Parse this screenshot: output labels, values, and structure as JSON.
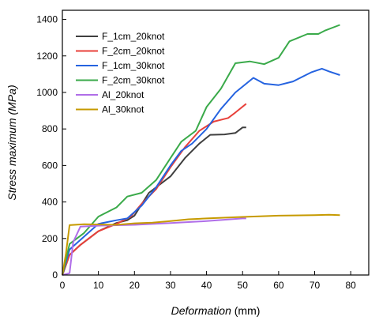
{
  "chart_data": {
    "type": "line",
    "xlabel_italic": "Deformation",
    "xlabel_unit": " (mm)",
    "ylabel_italic": "Stress maximum ",
    "ylabel_unit": "(MPa)",
    "xlim": [
      0,
      85
    ],
    "ylim": [
      0,
      1450
    ],
    "xticks": [
      0,
      10,
      20,
      30,
      40,
      50,
      60,
      70,
      80
    ],
    "yticks": [
      0,
      200,
      400,
      600,
      800,
      1000,
      1200,
      1400
    ],
    "grid": false,
    "legend_position": "top-left",
    "series": [
      {
        "name": "F_1cm_20knot",
        "color": "#3f3f3f",
        "points": [
          [
            0,
            0
          ],
          [
            2,
            110
          ],
          [
            5,
            165
          ],
          [
            10,
            240
          ],
          [
            15,
            285
          ],
          [
            18,
            300
          ],
          [
            20,
            325
          ],
          [
            24,
            450
          ],
          [
            30,
            540
          ],
          [
            34,
            640
          ],
          [
            38,
            720
          ],
          [
            41,
            768
          ],
          [
            45,
            770
          ],
          [
            48,
            778
          ],
          [
            50,
            808
          ],
          [
            51,
            808
          ]
        ]
      },
      {
        "name": "F_2cm_20knot",
        "color": "#e8413b",
        "points": [
          [
            0,
            0
          ],
          [
            2,
            110
          ],
          [
            5,
            165
          ],
          [
            10,
            240
          ],
          [
            15,
            280
          ],
          [
            19,
            320
          ],
          [
            22,
            390
          ],
          [
            26,
            470
          ],
          [
            30,
            590
          ],
          [
            34,
            700
          ],
          [
            38,
            790
          ],
          [
            42,
            840
          ],
          [
            46,
            860
          ],
          [
            48,
            890
          ],
          [
            51,
            938
          ]
        ]
      },
      {
        "name": "F_1cm_30knot",
        "color": "#2563e0",
        "points": [
          [
            0,
            0
          ],
          [
            2,
            140
          ],
          [
            6,
            210
          ],
          [
            10,
            280
          ],
          [
            15,
            300
          ],
          [
            18,
            310
          ],
          [
            22,
            380
          ],
          [
            26,
            480
          ],
          [
            30,
            600
          ],
          [
            33,
            680
          ],
          [
            36,
            720
          ],
          [
            40,
            800
          ],
          [
            44,
            910
          ],
          [
            48,
            1000
          ],
          [
            53,
            1080
          ],
          [
            56,
            1048
          ],
          [
            60,
            1040
          ],
          [
            64,
            1060
          ],
          [
            69,
            1110
          ],
          [
            72,
            1130
          ],
          [
            74,
            1115
          ],
          [
            77,
            1095
          ]
        ]
      },
      {
        "name": "F_2cm_30knot",
        "color": "#3aaa4a",
        "points": [
          [
            0,
            0
          ],
          [
            2,
            170
          ],
          [
            6,
            230
          ],
          [
            10,
            320
          ],
          [
            15,
            370
          ],
          [
            18,
            430
          ],
          [
            22,
            450
          ],
          [
            26,
            520
          ],
          [
            30,
            640
          ],
          [
            33,
            730
          ],
          [
            37,
            790
          ],
          [
            40,
            920
          ],
          [
            44,
            1020
          ],
          [
            48,
            1160
          ],
          [
            52,
            1170
          ],
          [
            56,
            1155
          ],
          [
            60,
            1190
          ],
          [
            63,
            1280
          ],
          [
            68,
            1320
          ],
          [
            71,
            1320
          ],
          [
            73,
            1340
          ],
          [
            77,
            1370
          ]
        ]
      },
      {
        "name": "Al_20knot",
        "color": "#b06ee8",
        "points": [
          [
            0,
            0
          ],
          [
            2,
            10
          ],
          [
            3,
            180
          ],
          [
            5,
            265
          ],
          [
            10,
            270
          ],
          [
            20,
            275
          ],
          [
            30,
            285
          ],
          [
            40,
            295
          ],
          [
            50,
            310
          ],
          [
            51,
            310
          ]
        ]
      },
      {
        "name": "Al_30knot",
        "color": "#c69a00",
        "points": [
          [
            0,
            0
          ],
          [
            1,
            120
          ],
          [
            2,
            273
          ],
          [
            6,
            278
          ],
          [
            15,
            275
          ],
          [
            20,
            283
          ],
          [
            25,
            287
          ],
          [
            30,
            295
          ],
          [
            35,
            305
          ],
          [
            40,
            310
          ],
          [
            50,
            318
          ],
          [
            60,
            325
          ],
          [
            70,
            328
          ],
          [
            74,
            330
          ],
          [
            77,
            328
          ]
        ]
      }
    ]
  }
}
